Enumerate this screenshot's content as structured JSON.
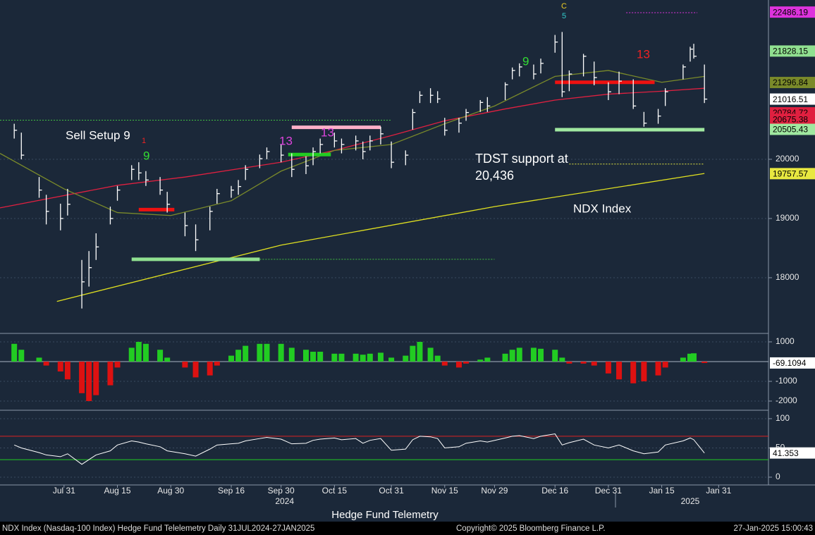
{
  "title": "Hedge Fund Telemetry",
  "footer": {
    "left": "NDX Index (Nasdaq-100 Index) Hedge Fund Telelemetry  Daily 31JUL2024-27JAN2025",
    "center": "Copyright© 2025 Bloomberg Finance L.P.",
    "right": "27-Jan-2025 15:00:43"
  },
  "chart_data": [
    {
      "type": "ohlc",
      "color": "#ffffff",
      "xlim": [
        "2024-07-13",
        "2025-02-14"
      ],
      "ylim": [
        17095,
        22690
      ],
      "yticks": [
        18000,
        19000,
        20000
      ],
      "x": [
        "2024-07-17",
        "2024-07-19",
        "2024-07-24",
        "2024-07-26",
        "2024-07-30",
        "2024-08-01",
        "2024-08-05",
        "2024-08-07",
        "2024-08-09",
        "2024-08-13",
        "2024-08-15",
        "2024-08-19",
        "2024-08-21",
        "2024-08-23",
        "2024-08-27",
        "2024-08-29",
        "2024-09-03",
        "2024-09-06",
        "2024-09-10",
        "2024-09-12",
        "2024-09-16",
        "2024-09-18",
        "2024-09-20",
        "2024-09-24",
        "2024-09-26",
        "2024-09-30",
        "2024-10-03",
        "2024-10-07",
        "2024-10-09",
        "2024-10-11",
        "2024-10-15",
        "2024-10-17",
        "2024-10-21",
        "2024-10-23",
        "2024-10-25",
        "2024-10-28",
        "2024-10-31",
        "2024-11-04",
        "2024-11-06",
        "2024-11-08",
        "2024-11-11",
        "2024-11-13",
        "2024-11-15",
        "2024-11-19",
        "2024-11-21",
        "2024-11-25",
        "2024-11-27",
        "2024-12-02",
        "2024-12-04",
        "2024-12-06",
        "2024-12-10",
        "2024-12-12",
        "2024-12-16",
        "2024-12-18",
        "2024-12-20",
        "2024-12-24",
        "2024-12-27",
        "2024-12-31",
        "2025-01-03",
        "2025-01-07",
        "2025-01-10",
        "2025-01-14",
        "2025-01-16",
        "2025-01-21",
        "2025-01-23",
        "2025-01-24",
        "2025-01-27"
      ],
      "high": [
        20600,
        20450,
        19700,
        19400,
        19250,
        19500,
        18300,
        18450,
        18750,
        19200,
        19550,
        19900,
        19950,
        19800,
        19700,
        19450,
        19100,
        18900,
        19200,
        19500,
        19550,
        19650,
        19900,
        20080,
        20200,
        20250,
        20100,
        20050,
        20200,
        20350,
        20450,
        20350,
        20400,
        20300,
        20400,
        20550,
        20300,
        20150,
        20850,
        21150,
        21200,
        21150,
        20700,
        20700,
        20850,
        21000,
        21050,
        21300,
        21550,
        21620,
        21600,
        21700,
        22100,
        22150,
        21500,
        21780,
        21650,
        21300,
        21480,
        21350,
        20800,
        20850,
        21200,
        21600,
        21900,
        21950,
        21600
      ],
      "low": [
        20350,
        20000,
        19350,
        18900,
        18800,
        19050,
        17480,
        17850,
        18300,
        18900,
        19300,
        19650,
        19650,
        19550,
        19400,
        19100,
        18700,
        18450,
        18800,
        19250,
        19350,
        19400,
        19650,
        19850,
        20000,
        19950,
        19700,
        19750,
        19900,
        20100,
        20200,
        20100,
        20150,
        20000,
        20150,
        20250,
        19850,
        19900,
        20500,
        20950,
        20950,
        20950,
        20400,
        20450,
        20650,
        20800,
        20800,
        21000,
        21350,
        21400,
        21350,
        21450,
        21800,
        21050,
        21150,
        21400,
        21250,
        21000,
        21100,
        20850,
        20550,
        20600,
        20900,
        21350,
        21650,
        21700,
        20950
      ],
      "close": [
        20490,
        20070,
        19480,
        19120,
        19000,
        19240,
        17930,
        18170,
        18520,
        19000,
        19480,
        19830,
        19770,
        19650,
        19480,
        19240,
        18880,
        18640,
        19120,
        19420,
        19480,
        19540,
        19830,
        20010,
        20130,
        20070,
        19830,
        19890,
        20130,
        20250,
        20310,
        20250,
        20310,
        20130,
        20310,
        20430,
        19950,
        20070,
        20790,
        21080,
        21080,
        21020,
        20490,
        20610,
        20790,
        20960,
        20900,
        21260,
        21500,
        21560,
        21440,
        21620,
        21980,
        21140,
        21440,
        21740,
        21380,
        21140,
        21320,
        20900,
        20610,
        20730,
        21140,
        21560,
        21860,
        21740,
        21016.51
      ],
      "overlays": [
        {
          "color": "#e0e020",
          "x": [
            "2024-07-29",
            "2024-09-30",
            "2024-11-29",
            "2025-01-27"
          ],
          "values": [
            17600,
            18550,
            19200,
            19760
          ]
        },
        {
          "color": "#e02040",
          "x": [
            "2024-07-13",
            "2024-08-15",
            "2024-09-03",
            "2024-09-30",
            "2024-10-15",
            "2024-10-31",
            "2024-11-15",
            "2024-12-02",
            "2024-12-16",
            "2024-12-31",
            "2025-01-15",
            "2025-01-27"
          ],
          "values": [
            19180,
            19560,
            19700,
            19950,
            20150,
            20400,
            20650,
            20850,
            21000,
            21100,
            21150,
            21200
          ]
        },
        {
          "color": "#7a8a2a",
          "x": [
            "2024-07-13",
            "2024-07-31",
            "2024-08-15",
            "2024-08-30",
            "2024-09-16",
            "2024-09-30",
            "2024-10-15",
            "2024-10-31",
            "2024-11-15",
            "2024-11-29",
            "2024-12-16",
            "2024-12-31",
            "2025-01-15",
            "2025-01-27"
          ],
          "values": [
            20100,
            19500,
            19100,
            19050,
            19300,
            19800,
            20150,
            20250,
            20600,
            20900,
            21400,
            21500,
            21300,
            21400
          ]
        }
      ],
      "levels": [
        {
          "x": [
            "2024-08-21",
            "2024-08-31"
          ],
          "value": 19150,
          "color": "#ee1111",
          "width": 5
        },
        {
          "x": [
            "2024-08-19",
            "2024-09-24"
          ],
          "value": 18310,
          "color": "#90e090",
          "width": 5
        },
        {
          "x": [
            "2024-09-24",
            "2024-11-29"
          ],
          "value": 18310,
          "color": "#40c040",
          "width": 1
        },
        {
          "x": [
            "2024-10-02",
            "2024-10-14"
          ],
          "value": 20080,
          "color": "#22cc22",
          "width": 5
        },
        {
          "x": [
            "2024-10-03",
            "2024-10-28"
          ],
          "value": 20540,
          "color": "#ffb0c8",
          "width": 5
        },
        {
          "x": [
            "2024-07-13",
            "2024-10-31"
          ],
          "value": 20660,
          "color": "#40c040",
          "width": 1
        },
        {
          "x": [
            "2024-12-16",
            "2025-01-13"
          ],
          "value": 21300,
          "color": "#ee1111",
          "width": 5
        },
        {
          "x": [
            "2024-12-16",
            "2025-01-27"
          ],
          "value": 20500,
          "color": "#a0e8a0",
          "width": 5
        },
        {
          "x": [
            "2024-12-20",
            "2025-01-27"
          ],
          "value": 19920,
          "color": "#e8e840",
          "width": 1
        },
        {
          "x": [
            "2025-01-05",
            "2025-01-25"
          ],
          "value": 22476,
          "color": "#dd33dd",
          "width": 1
        }
      ],
      "annotations": [
        {
          "text": "Sell Setup 9",
          "color": "#ffffff"
        },
        {
          "text": "TDST support at",
          "color": "#ffffff"
        },
        {
          "text": "20,436",
          "color": "#ffffff"
        },
        {
          "text": "NDX Index",
          "color": "#ffffff"
        },
        {
          "text": "9",
          "color": "#33dd33"
        },
        {
          "text": "13",
          "color": "#dd44dd"
        },
        {
          "text": "13",
          "color": "#dd44dd"
        },
        {
          "text": "9",
          "color": "#33dd33"
        },
        {
          "text": "13",
          "color": "#ee2222"
        },
        {
          "text": "C",
          "color": "#eecc22"
        },
        {
          "text": "5",
          "color": "#33cccc"
        },
        {
          "text": "1",
          "color": "#ee2222"
        }
      ],
      "markers": [
        {
          "value": 22486.19,
          "color": "#dd33dd"
        },
        {
          "value": 21828.15,
          "color": "#90e090"
        },
        {
          "value": 21296.84,
          "color": "#7a8a2a"
        },
        {
          "value": 21016.51,
          "color": "#ffffff"
        },
        {
          "value": 20784.72,
          "color": "#e02040"
        },
        {
          "value": 20675.38,
          "color": "#e02040"
        },
        {
          "value": 20505.43,
          "color": "#a0e8a0"
        },
        {
          "value": 19757.57,
          "color": "#e8e840"
        }
      ]
    },
    {
      "type": "bar",
      "ylim": [
        -2321,
        1321
      ],
      "yticks": [
        1000,
        -1000,
        -2000
      ],
      "colors": {
        "positive": "#22cc22",
        "negative": "#dd1111"
      },
      "x": [
        "2024-07-17",
        "2024-07-19",
        "2024-07-24",
        "2024-07-26",
        "2024-07-30",
        "2024-08-01",
        "2024-08-05",
        "2024-08-07",
        "2024-08-09",
        "2024-08-13",
        "2024-08-15",
        "2024-08-19",
        "2024-08-21",
        "2024-08-23",
        "2024-08-27",
        "2024-08-29",
        "2024-09-03",
        "2024-09-06",
        "2024-09-10",
        "2024-09-12",
        "2024-09-16",
        "2024-09-18",
        "2024-09-20",
        "2024-09-24",
        "2024-09-26",
        "2024-09-30",
        "2024-10-03",
        "2024-10-07",
        "2024-10-09",
        "2024-10-11",
        "2024-10-15",
        "2024-10-17",
        "2024-10-21",
        "2024-10-23",
        "2024-10-25",
        "2024-10-28",
        "2024-10-31",
        "2024-11-04",
        "2024-11-06",
        "2024-11-08",
        "2024-11-11",
        "2024-11-13",
        "2024-11-15",
        "2024-11-19",
        "2024-11-21",
        "2024-11-25",
        "2024-11-27",
        "2024-12-02",
        "2024-12-04",
        "2024-12-06",
        "2024-12-10",
        "2024-12-12",
        "2024-12-16",
        "2024-12-18",
        "2024-12-20",
        "2024-12-24",
        "2024-12-27",
        "2024-12-31",
        "2025-01-03",
        "2025-01-07",
        "2025-01-10",
        "2025-01-14",
        "2025-01-16",
        "2025-01-21",
        "2025-01-23",
        "2025-01-24",
        "2025-01-27"
      ],
      "values": [
        900,
        600,
        200,
        -200,
        -500,
        -900,
        -1600,
        -2000,
        -1700,
        -1200,
        -300,
        700,
        1000,
        900,
        600,
        200,
        -300,
        -800,
        -700,
        -200,
        300,
        600,
        800,
        900,
        900,
        900,
        700,
        600,
        500,
        500,
        400,
        400,
        400,
        350,
        400,
        450,
        200,
        300,
        800,
        1000,
        700,
        300,
        -200,
        -300,
        -100,
        100,
        200,
        400,
        600,
        700,
        700,
        650,
        600,
        200,
        -100,
        -100,
        -200,
        -600,
        -900,
        -1100,
        -1000,
        -700,
        -300,
        200,
        400,
        420,
        -69.1094
      ]
    },
    {
      "type": "line",
      "color": "#ffffff",
      "ylim": [
        -13.3,
        109.6
      ],
      "yticks": [
        0,
        50,
        100
      ],
      "levels": [
        {
          "value": 70,
          "color": "#dd2222"
        },
        {
          "value": 30,
          "color": "#22cc22"
        }
      ],
      "x": [
        "2024-07-17",
        "2024-07-19",
        "2024-07-24",
        "2024-07-26",
        "2024-07-30",
        "2024-08-01",
        "2024-08-05",
        "2024-08-07",
        "2024-08-09",
        "2024-08-13",
        "2024-08-15",
        "2024-08-19",
        "2024-08-21",
        "2024-08-23",
        "2024-08-27",
        "2024-08-29",
        "2024-09-03",
        "2024-09-06",
        "2024-09-10",
        "2024-09-12",
        "2024-09-16",
        "2024-09-18",
        "2024-09-20",
        "2024-09-24",
        "2024-09-26",
        "2024-09-30",
        "2024-10-03",
        "2024-10-07",
        "2024-10-09",
        "2024-10-11",
        "2024-10-15",
        "2024-10-17",
        "2024-10-21",
        "2024-10-23",
        "2024-10-25",
        "2024-10-28",
        "2024-10-31",
        "2024-11-04",
        "2024-11-06",
        "2024-11-08",
        "2024-11-11",
        "2024-11-13",
        "2024-11-15",
        "2024-11-19",
        "2024-11-21",
        "2024-11-25",
        "2024-11-27",
        "2024-12-02",
        "2024-12-04",
        "2024-12-06",
        "2024-12-10",
        "2024-12-12",
        "2024-12-16",
        "2024-12-18",
        "2024-12-20",
        "2024-12-24",
        "2024-12-27",
        "2024-12-31",
        "2025-01-03",
        "2025-01-07",
        "2025-01-10",
        "2025-01-14",
        "2025-01-16",
        "2025-01-21",
        "2025-01-23",
        "2025-01-24",
        "2025-01-27"
      ],
      "values": [
        55,
        50,
        42,
        38,
        35,
        40,
        22,
        30,
        38,
        45,
        55,
        62,
        60,
        57,
        52,
        45,
        40,
        36,
        48,
        55,
        57,
        58,
        62,
        66,
        68,
        65,
        57,
        58,
        63,
        65,
        67,
        64,
        66,
        58,
        63,
        66,
        46,
        48,
        64,
        70,
        69,
        66,
        50,
        52,
        58,
        62,
        60,
        67,
        70,
        71,
        66,
        70,
        74,
        55,
        59,
        65,
        55,
        50,
        55,
        45,
        40,
        43,
        55,
        62,
        67,
        64,
        41.353
      ],
      "xticks": [
        {
          "value": "2024-07-31",
          "label": "Jul 31"
        },
        {
          "value": "2024-08-15",
          "label": "Aug 15"
        },
        {
          "value": "2024-08-30",
          "label": "Aug 30"
        },
        {
          "value": "2024-09-16",
          "label": "Sep 16"
        },
        {
          "value": "2024-09-30",
          "label": "Sep 30"
        },
        {
          "value": "2024-10-15",
          "label": "Oct 15"
        },
        {
          "value": "2024-10-31",
          "label": "Oct 31"
        },
        {
          "value": "2024-11-15",
          "label": "Nov 15"
        },
        {
          "value": "2024-11-29",
          "label": "Nov 29"
        },
        {
          "value": "2024-12-16",
          "label": "Dec 16"
        },
        {
          "value": "2024-12-31",
          "label": "Dec 31"
        },
        {
          "value": "2025-01-15",
          "label": "Jan 15"
        },
        {
          "value": "2025-01-31",
          "label": "Jan 31"
        }
      ],
      "years": [
        {
          "value": "2024-10-01",
          "label": "2024"
        },
        {
          "value": "2025-01-23",
          "label": "2025"
        }
      ]
    }
  ]
}
